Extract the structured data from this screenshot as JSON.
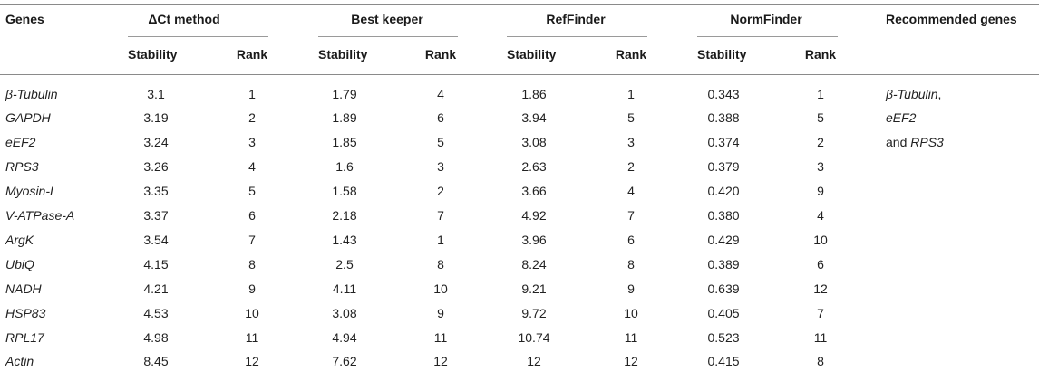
{
  "headers": {
    "genes": "Genes",
    "delta_ct_prefix": "Δ",
    "delta_ct_rest": "Ct method",
    "best_keeper": "Best keeper",
    "reffinder": "RefFinder",
    "normfinder": "NormFinder",
    "recommended": "Recommended genes",
    "stability": "Stability",
    "rank": "Rank"
  },
  "rows": [
    {
      "gene": "β-Tubulin",
      "dct_stability": "3.1",
      "dct_rank": "1",
      "bk_stability": "1.79",
      "bk_rank": "4",
      "rf_stability": "1.86",
      "rf_rank": "1",
      "nf_stability": "0.343",
      "nf_rank": "1"
    },
    {
      "gene": "GAPDH",
      "dct_stability": "3.19",
      "dct_rank": "2",
      "bk_stability": "1.89",
      "bk_rank": "6",
      "rf_stability": "3.94",
      "rf_rank": "5",
      "nf_stability": "0.388",
      "nf_rank": "5"
    },
    {
      "gene": "eEF2",
      "dct_stability": "3.24",
      "dct_rank": "3",
      "bk_stability": "1.85",
      "bk_rank": "5",
      "rf_stability": "3.08",
      "rf_rank": "3",
      "nf_stability": "0.374",
      "nf_rank": "2"
    },
    {
      "gene": "RPS3",
      "dct_stability": "3.26",
      "dct_rank": "4",
      "bk_stability": "1.6",
      "bk_rank": "3",
      "rf_stability": "2.63",
      "rf_rank": "2",
      "nf_stability": "0.379",
      "nf_rank": "3"
    },
    {
      "gene": "Myosin-L",
      "dct_stability": "3.35",
      "dct_rank": "5",
      "bk_stability": "1.58",
      "bk_rank": "2",
      "rf_stability": "3.66",
      "rf_rank": "4",
      "nf_stability": "0.420",
      "nf_rank": "9"
    },
    {
      "gene": "V-ATPase-A",
      "dct_stability": "3.37",
      "dct_rank": "6",
      "bk_stability": "2.18",
      "bk_rank": "7",
      "rf_stability": "4.92",
      "rf_rank": "7",
      "nf_stability": "0.380",
      "nf_rank": "4"
    },
    {
      "gene": "ArgK",
      "dct_stability": "3.54",
      "dct_rank": "7",
      "bk_stability": "1.43",
      "bk_rank": "1",
      "rf_stability": "3.96",
      "rf_rank": "6",
      "nf_stability": "0.429",
      "nf_rank": "10"
    },
    {
      "gene": "UbiQ",
      "dct_stability": "4.15",
      "dct_rank": "8",
      "bk_stability": "2.5",
      "bk_rank": "8",
      "rf_stability": "8.24",
      "rf_rank": "8",
      "nf_stability": "0.389",
      "nf_rank": "6"
    },
    {
      "gene": "NADH",
      "dct_stability": "4.21",
      "dct_rank": "9",
      "bk_stability": "4.11",
      "bk_rank": "10",
      "rf_stability": "9.21",
      "rf_rank": "9",
      "nf_stability": "0.639",
      "nf_rank": "12"
    },
    {
      "gene": "HSP83",
      "dct_stability": "4.53",
      "dct_rank": "10",
      "bk_stability": "3.08",
      "bk_rank": "9",
      "rf_stability": "9.72",
      "rf_rank": "10",
      "nf_stability": "0.405",
      "nf_rank": "7"
    },
    {
      "gene": "RPL17",
      "dct_stability": "4.98",
      "dct_rank": "11",
      "bk_stability": "4.94",
      "bk_rank": "11",
      "rf_stability": "10.74",
      "rf_rank": "11",
      "nf_stability": "0.523",
      "nf_rank": "11"
    },
    {
      "gene": "Actin",
      "dct_stability": "8.45",
      "dct_rank": "12",
      "bk_stability": "7.62",
      "bk_rank": "12",
      "rf_stability": "12",
      "rf_rank": "12",
      "nf_stability": "0.415",
      "nf_rank": "8"
    }
  ],
  "recommended": {
    "line1_gene": "β-Tubulin",
    "line1_suffix": ",",
    "line2_gene": "eEF2",
    "line3_prefix": "and ",
    "line3_gene": "RPS3"
  }
}
